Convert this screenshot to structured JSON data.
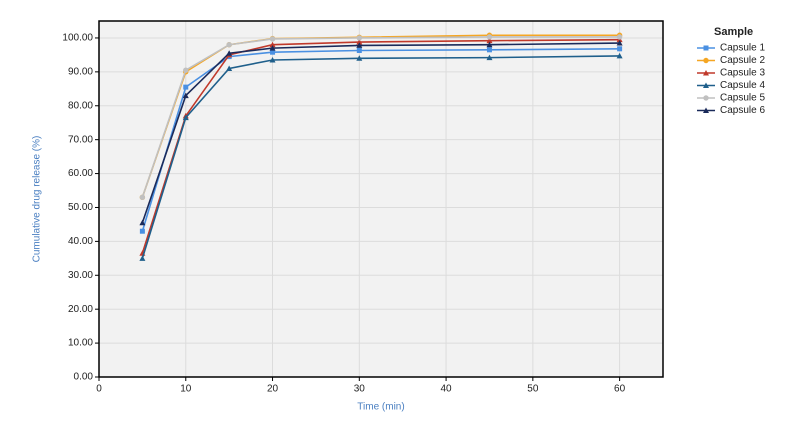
{
  "chart_data": {
    "type": "line",
    "xlabel": "Time (min)",
    "ylabel": "Cumulative drug release (%)",
    "legend_title": "Sample",
    "legend": "outside-right",
    "grid": true,
    "x": [
      5,
      10,
      15,
      20,
      30,
      45,
      60
    ],
    "xlim": [
      0,
      65
    ],
    "xticks": [
      0,
      10,
      20,
      30,
      40,
      50,
      60
    ],
    "ylim": [
      0,
      105
    ],
    "yticks": [
      {
        "value": 0,
        "label": "0.00"
      },
      {
        "value": 10,
        "label": "10.00"
      },
      {
        "value": 20,
        "label": "20.00"
      },
      {
        "value": 30,
        "label": "30.00"
      },
      {
        "value": 40,
        "label": "40.00"
      },
      {
        "value": 50,
        "label": "50.00"
      },
      {
        "value": 60,
        "label": "60.00"
      },
      {
        "value": 70,
        "label": "70.00"
      },
      {
        "value": 80,
        "label": "80.00"
      },
      {
        "value": 90,
        "label": "90.00"
      },
      {
        "value": 100,
        "label": "100.00"
      }
    ],
    "series": [
      {
        "name": "Capsule 1",
        "color": "#4a90e2",
        "marker": "square",
        "values": [
          43,
          85.5,
          94.5,
          95.8,
          96.3,
          96.5,
          96.8
        ]
      },
      {
        "name": "Capsule 2",
        "color": "#f5a623",
        "marker": "circle",
        "values": [
          53,
          90,
          98,
          99.8,
          100.2,
          100.8,
          100.8
        ]
      },
      {
        "name": "Capsule 3",
        "color": "#c0392b",
        "marker": "triangle",
        "values": [
          36.5,
          77,
          95,
          98,
          98.8,
          99.2,
          99.5
        ]
      },
      {
        "name": "Capsule 4",
        "color": "#1f5f8b",
        "marker": "triangle",
        "values": [
          35,
          76.5,
          91,
          93.5,
          94,
          94.2,
          94.7
        ]
      },
      {
        "name": "Capsule 5",
        "color": "#c0c0c0",
        "marker": "circle",
        "values": [
          53,
          90.5,
          98,
          99.7,
          100,
          100.3,
          100.3
        ]
      },
      {
        "name": "Capsule 6",
        "color": "#1a2a5a",
        "marker": "triangle",
        "values": [
          45.5,
          83,
          95.5,
          97,
          97.8,
          98,
          98.5
        ]
      }
    ]
  }
}
